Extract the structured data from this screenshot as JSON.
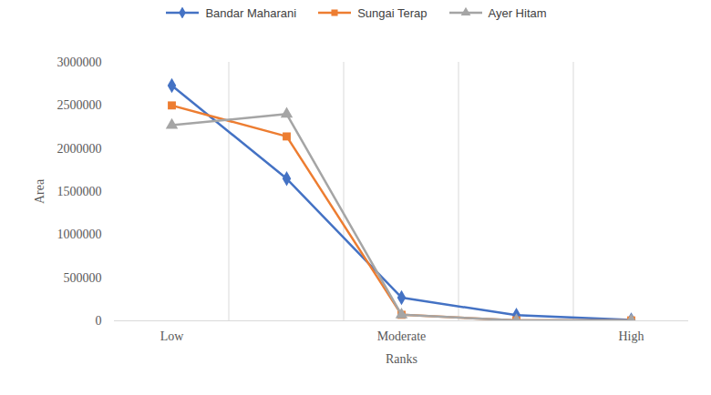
{
  "chart_data": {
    "type": "line",
    "x_label": "Ranks",
    "y_label": "Area",
    "categories": [
      "Low",
      null,
      "Moderate",
      null,
      "High"
    ],
    "series": [
      {
        "name": "Bandar Maharani",
        "color": "#4472c4",
        "marker": "diamond",
        "values": [
          2730000,
          1650000,
          270000,
          65000,
          10000
        ]
      },
      {
        "name": "Sungai Terap",
        "color": "#ed7d31",
        "marker": "square",
        "values": [
          2500000,
          2140000,
          70000,
          5000,
          5000
        ]
      },
      {
        "name": "Ayer Hitam",
        "color": "#a5a5a5",
        "marker": "triangle",
        "values": [
          2270000,
          2400000,
          70000,
          5000,
          5000
        ]
      }
    ],
    "ylim": [
      0,
      3000000
    ],
    "yticks": [
      0,
      500000,
      1000000,
      1500000,
      2000000,
      2500000,
      3000000
    ],
    "grid": true,
    "legend": "top"
  }
}
